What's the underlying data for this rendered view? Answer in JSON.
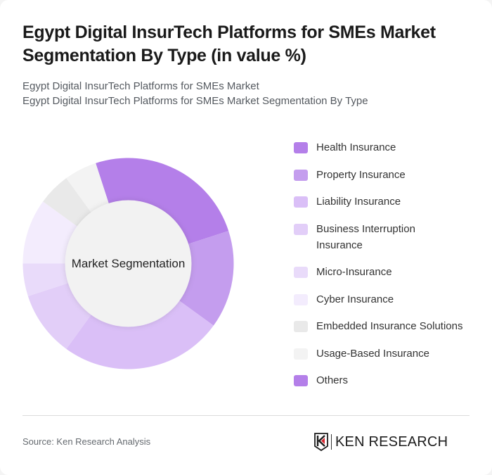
{
  "header": {
    "title_line1": "Egypt Digital InsurTech Platforms for SMEs Market",
    "title_line2": "Segmentation By Type (in value %)",
    "subtitle_line1": "Egypt Digital InsurTech Platforms for SMEs Market",
    "subtitle_line2": "Egypt Digital InsurTech Platforms for SMEs Market Segmentation By Type"
  },
  "chart_data": {
    "type": "pie",
    "variant": "donut",
    "title": "Egypt Digital InsurTech Platforms for SMEs Market Segmentation By Type (in value %)",
    "center_label": "Market Segmentation",
    "start_angle_deg": -18,
    "categories": [
      "Health Insurance",
      "Property Insurance",
      "Liability Insurance",
      "Business Interruption Insurance",
      "Micro-Insurance",
      "Cyber Insurance",
      "Embedded Insurance Solutions",
      "Usage-Based Insurance",
      "Others"
    ],
    "values": [
      25,
      15,
      25,
      10,
      5,
      10,
      5,
      5,
      0
    ],
    "colors": [
      "#b47fe9",
      "#c49dee",
      "#dabff7",
      "#e2cef8",
      "#e9dbfa",
      "#f3ecfd",
      "#e9e9e9",
      "#f3f3f3",
      "#b47fe9"
    ],
    "legend_position": "right"
  },
  "legend": {
    "items": [
      {
        "label": "Health Insurance",
        "color": "#b47fe9"
      },
      {
        "label": "Property Insurance",
        "color": "#c49dee"
      },
      {
        "label": "Liability Insurance",
        "color": "#dabff7"
      },
      {
        "label": "Business Interruption Insurance",
        "color": "#e2cef8"
      },
      {
        "label": "Micro-Insurance",
        "color": "#e9dbfa"
      },
      {
        "label": "Cyber Insurance",
        "color": "#f3ecfd"
      },
      {
        "label": "Embedded Insurance Solutions",
        "color": "#e9e9e9"
      },
      {
        "label": "Usage-Based Insurance",
        "color": "#f3f3f3"
      },
      {
        "label": "Others",
        "color": "#b47fe9"
      }
    ]
  },
  "footer": {
    "source": "Source: Ken Research Analysis",
    "logo_text": "KEN RESEARCH"
  }
}
